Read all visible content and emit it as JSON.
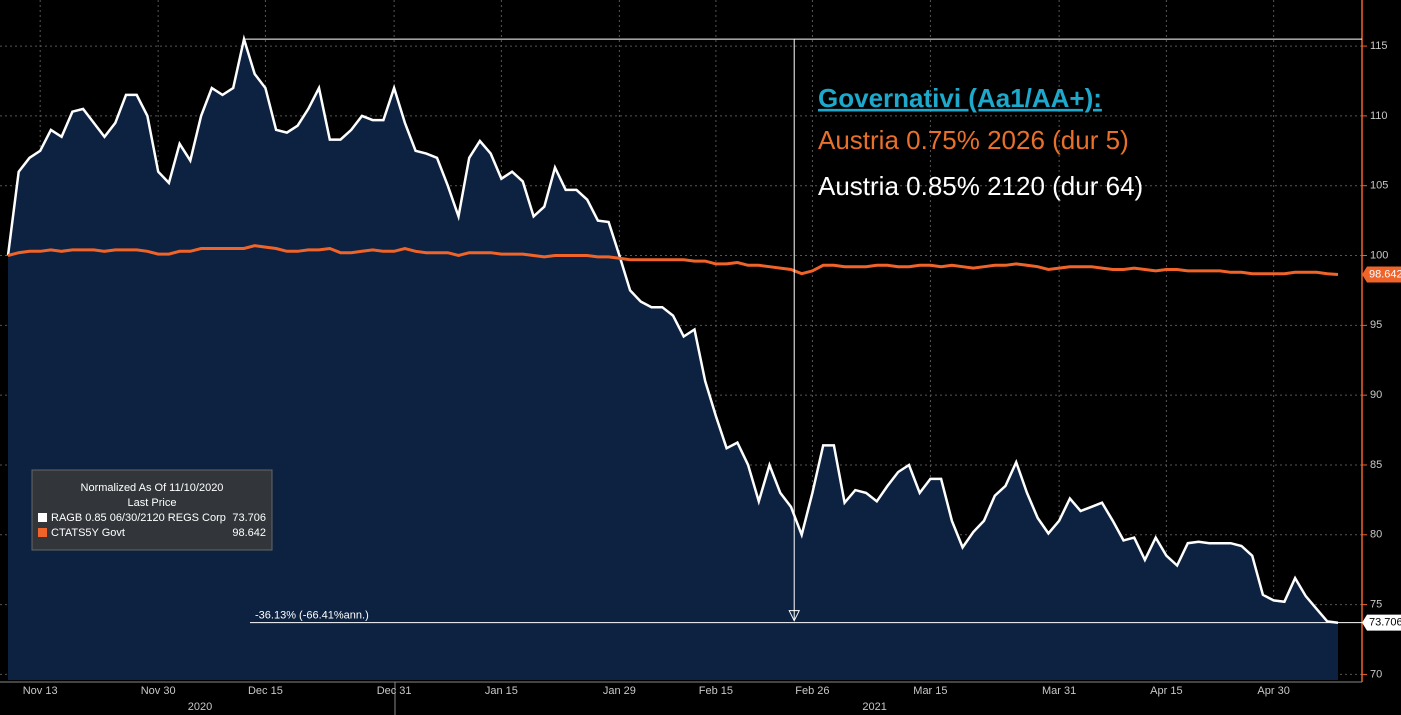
{
  "chart_data": {
    "type": "line",
    "annotations": [
      "Governativi (Aa1/AA+):",
      "Austria 0.75% 2026 (dur 5)",
      "Austria 0.85% 2120 (dur 64)"
    ],
    "measure_label": "-36.13% (-66.41%ann.)",
    "legend": {
      "title": "Normalized As Of 11/10/2020",
      "subtitle": "Last Price"
    },
    "categories": [
      null,
      null,
      null,
      "Nov 13",
      null,
      null,
      null,
      null,
      null,
      null,
      null,
      null,
      null,
      null,
      "Nov 30",
      null,
      null,
      null,
      null,
      null,
      null,
      null,
      null,
      null,
      "Dec 15",
      null,
      null,
      null,
      null,
      null,
      null,
      null,
      null,
      null,
      null,
      null,
      "Dec 31",
      null,
      null,
      null,
      null,
      null,
      null,
      null,
      null,
      null,
      "Jan 15",
      null,
      null,
      null,
      null,
      null,
      null,
      null,
      null,
      null,
      null,
      "Jan 29",
      null,
      null,
      null,
      null,
      null,
      null,
      null,
      null,
      "Feb 15",
      null,
      null,
      null,
      null,
      null,
      null,
      null,
      null,
      "Feb 26",
      null,
      null,
      null,
      null,
      null,
      null,
      null,
      null,
      null,
      null,
      "Mar 15",
      null,
      null,
      null,
      null,
      null,
      null,
      null,
      null,
      null,
      null,
      null,
      "Mar 31",
      null,
      null,
      null,
      null,
      null,
      null,
      null,
      null,
      null,
      "Apr 15",
      null,
      null,
      null,
      null,
      null,
      null,
      null,
      null,
      null,
      "Apr 30",
      null,
      null,
      null,
      null,
      null,
      null
    ],
    "x_groups": [
      "2020",
      "2021"
    ],
    "series": [
      {
        "name": "RAGB 0.85 06/30/2120 REGS Corp",
        "color": "#ffffff",
        "values": [
          100,
          106,
          107,
          107.5,
          109,
          108.5,
          110.3,
          110.5,
          109.5,
          108.5,
          109.5,
          111.5,
          111.5,
          110,
          106,
          105.2,
          108,
          106.8,
          110,
          112,
          111.5,
          112,
          115.5,
          113,
          112,
          109,
          108.8,
          109.3,
          110.5,
          112,
          108.3,
          108.3,
          109,
          110,
          109.7,
          109.7,
          112,
          109.5,
          107.5,
          107.3,
          107,
          105,
          102.8,
          107,
          108.2,
          107.3,
          105.5,
          106,
          105.3,
          102.8,
          103.5,
          106.3,
          104.7,
          104.7,
          104,
          102.5,
          102.4,
          100,
          97.5,
          96.7,
          96.3,
          96.3,
          95.7,
          94.2,
          94.7,
          91,
          88.5,
          86.2,
          86.6,
          85,
          82.4,
          85,
          83,
          82,
          80,
          83,
          86.4,
          86.4,
          82.3,
          83.2,
          83,
          82.4,
          83.5,
          84.5,
          85,
          83,
          84,
          84,
          81,
          79.1,
          80.2,
          81,
          82.8,
          83.5,
          85.2,
          83,
          81.2,
          80.1,
          81,
          82.6,
          81.7,
          82,
          82.3,
          81,
          79.6,
          79.8,
          78.2,
          79.8,
          78.5,
          77.8,
          79.4,
          79.5,
          79.4,
          79.4,
          79.4,
          79.2,
          78.5,
          75.7,
          75.3,
          75.2,
          76.9,
          75.6,
          74.7,
          73.8,
          73.706
        ]
      },
      {
        "name": "CTATS5Y Govt",
        "color": "#f0642a",
        "values": [
          100,
          100.2,
          100.3,
          100.3,
          100.4,
          100.3,
          100.4,
          100.4,
          100.4,
          100.3,
          100.4,
          100.4,
          100.4,
          100.3,
          100.1,
          100.1,
          100.3,
          100.3,
          100.5,
          100.5,
          100.5,
          100.5,
          100.5,
          100.7,
          100.6,
          100.5,
          100.3,
          100.3,
          100.4,
          100.4,
          100.5,
          100.2,
          100.2,
          100.3,
          100.4,
          100.3,
          100.3,
          100.5,
          100.3,
          100.2,
          100.2,
          100.2,
          100.0,
          100.2,
          100.2,
          100.2,
          100.1,
          100.1,
          100.1,
          100.0,
          99.9,
          100.0,
          100.0,
          100.0,
          100.0,
          99.9,
          99.9,
          99.8,
          99.7,
          99.7,
          99.7,
          99.7,
          99.7,
          99.7,
          99.6,
          99.6,
          99.4,
          99.4,
          99.5,
          99.3,
          99.3,
          99.2,
          99.1,
          99.0,
          98.7,
          98.9,
          99.3,
          99.3,
          99.2,
          99.2,
          99.2,
          99.3,
          99.3,
          99.2,
          99.2,
          99.3,
          99.3,
          99.2,
          99.3,
          99.2,
          99.1,
          99.2,
          99.3,
          99.3,
          99.4,
          99.3,
          99.2,
          99.0,
          99.1,
          99.2,
          99.2,
          99.2,
          99.1,
          99.0,
          99.0,
          99.1,
          99.0,
          98.9,
          99.0,
          99.0,
          98.9,
          98.9,
          98.9,
          98.9,
          98.8,
          98.8,
          98.7,
          98.7,
          98.7,
          98.7,
          98.8,
          98.8,
          98.8,
          98.7,
          98.642
        ]
      }
    ],
    "ylim": [
      69.6,
      118.3
    ],
    "yticks": [
      70,
      75,
      80,
      85,
      90,
      95,
      100,
      105,
      110,
      115
    ],
    "grid": true
  }
}
